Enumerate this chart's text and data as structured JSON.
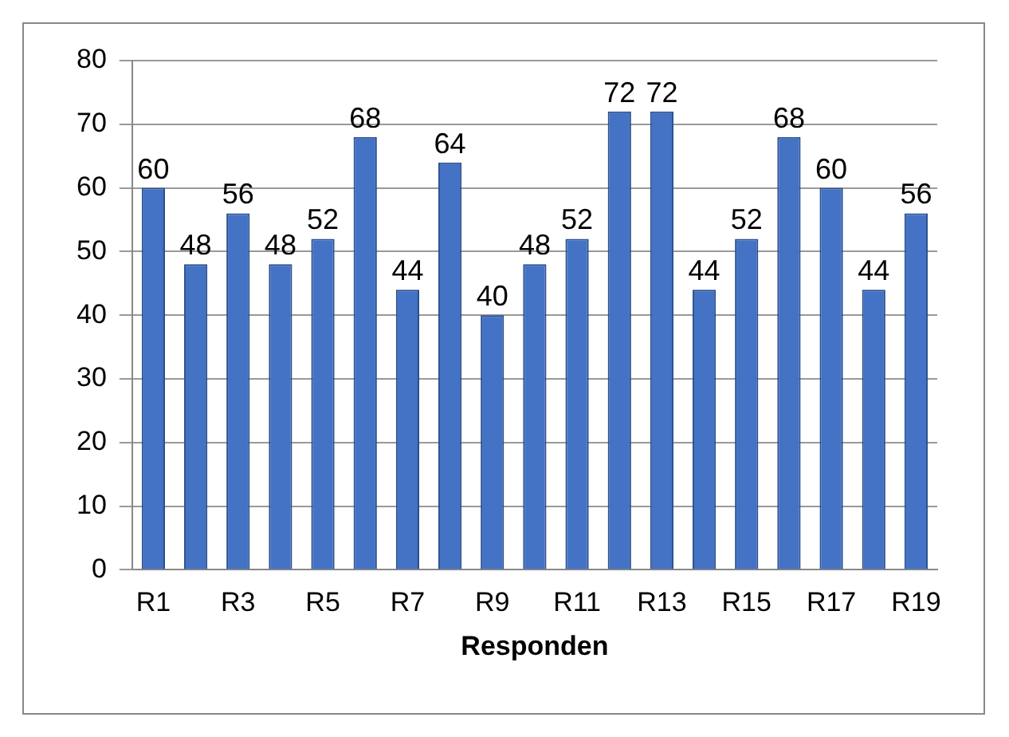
{
  "chart_data": {
    "type": "bar",
    "xlabel": "Responden",
    "categories": [
      "R1",
      null,
      "R3",
      null,
      "R5",
      null,
      "R7",
      null,
      "R9",
      null,
      "R11",
      null,
      "R13",
      null,
      "R15",
      null,
      "R17",
      null,
      "R19"
    ],
    "values": [
      60,
      48,
      56,
      48,
      52,
      68,
      44,
      64,
      40,
      48,
      52,
      72,
      72,
      44,
      52,
      68,
      60,
      44,
      56
    ],
    "color": "#4472c4",
    "ylim": [
      0,
      80
    ],
    "yticks": [
      0,
      10,
      20,
      30,
      40,
      50,
      60,
      70,
      80
    ],
    "grid": "y",
    "legend": false,
    "data_labels": true
  }
}
